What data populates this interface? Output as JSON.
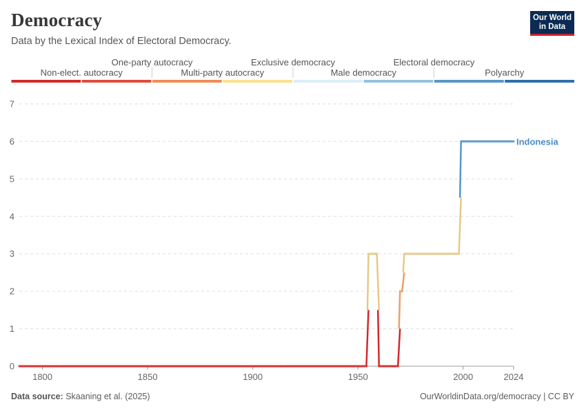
{
  "header": {
    "title": "Democracy",
    "subtitle": "Data by the Lexical Index of Electoral Democracy."
  },
  "logo": {
    "line1": "Our World",
    "line2": "in Data"
  },
  "footer": {
    "source_label": "Data source:",
    "source_text": "Skaaning et al. (2025)",
    "url_text": "OurWorldinData.org/democracy | CC BY"
  },
  "chart_data": {
    "type": "line",
    "title": "Democracy",
    "subtitle": "Data by the Lexical Index of Electoral Democracy.",
    "xlabel": "",
    "ylabel": "",
    "xlim": [
      1789,
      2024
    ],
    "ylim": [
      0,
      7
    ],
    "x_ticks": [
      "1800",
      "1850",
      "1900",
      "1950",
      "2000",
      "2024"
    ],
    "y_ticks": [
      "0",
      "1",
      "2",
      "3",
      "4",
      "5",
      "6",
      "7"
    ],
    "grid": "horizontal dashed",
    "legend": {
      "placement": "top",
      "categories": [
        {
          "label": "Non-elect. autocracy",
          "color": "#d42828"
        },
        {
          "label": "One-party autocracy",
          "color": "#e04b3c"
        },
        {
          "label": "Multi-party autocracy",
          "color": "#f08d55"
        },
        {
          "label": "Exclusive democracy",
          "color": "#fbe08c"
        },
        {
          "label": "Male democracy",
          "color": "#dceef8"
        },
        {
          "label": "Electoral democracy",
          "color": "#92c4dc"
        },
        {
          "label": "Polyarchy",
          "color": "#5896c8"
        },
        {
          "label": "",
          "color": "#2c6fad"
        }
      ]
    },
    "level_colors": [
      "#d42828",
      "#ec7a4b",
      "#e9a067",
      "#e5c988",
      "#b9d2dd",
      "#8fbfda",
      "#5796c6",
      "#2c6fad"
    ],
    "series": [
      {
        "name": "Indonesia",
        "label_color": "#4a8cc4",
        "points": [
          [
            1789,
            0
          ],
          [
            1954,
            0
          ],
          [
            1955,
            3
          ],
          [
            1959,
            3
          ],
          [
            1960,
            0
          ],
          [
            1969,
            0
          ],
          [
            1970,
            2
          ],
          [
            1971,
            2
          ],
          [
            1972,
            3
          ],
          [
            1998,
            3
          ],
          [
            1999,
            6
          ],
          [
            2024,
            6
          ]
        ]
      }
    ]
  }
}
